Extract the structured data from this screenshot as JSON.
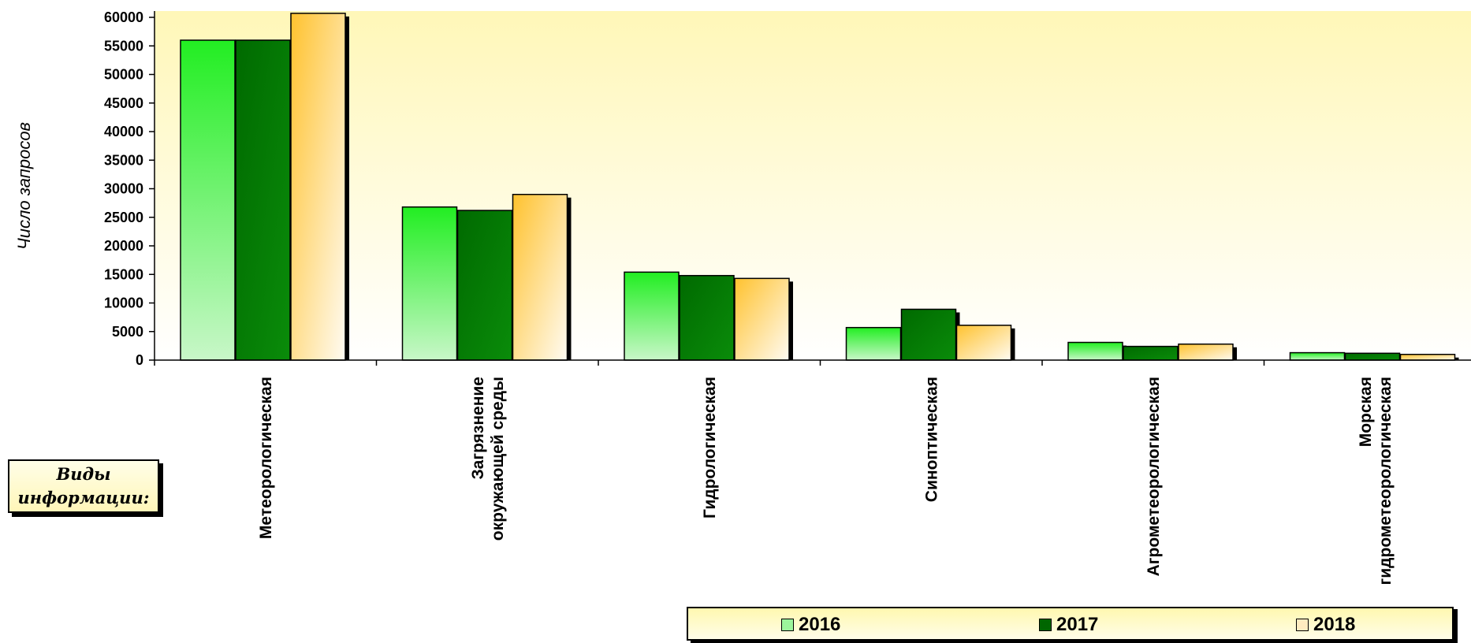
{
  "chart_data": {
    "type": "bar",
    "title": "",
    "xlabel": "Виды информации:",
    "ylabel": "Число запросов",
    "ylim": [
      0,
      60000
    ],
    "yticks": [
      "0",
      "5000",
      "10000",
      "15000",
      "20000",
      "25000",
      "30000",
      "35000",
      "40000",
      "45000",
      "50000",
      "55000",
      "60000"
    ],
    "categories": [
      [
        "Метеорологическая"
      ],
      [
        "Загрязнение",
        "окружающей среды"
      ],
      [
        "Гидрологическая"
      ],
      [
        "Синоптическая"
      ],
      [
        "Агрометеорологическая"
      ],
      [
        "Морская",
        "гидрометеорологическая"
      ]
    ],
    "series": [
      {
        "name": "2016",
        "values": [
          56000,
          26800,
          15400,
          5700,
          3100,
          1300
        ]
      },
      {
        "name": "2017",
        "values": [
          56000,
          26200,
          14800,
          8900,
          2400,
          1200
        ]
      },
      {
        "name": "2018",
        "values": [
          60700,
          29000,
          14300,
          6100,
          2800,
          1000
        ]
      }
    ],
    "legend_position": "bottom",
    "grid": false,
    "colors": {
      "2016_top": "#22ee22",
      "2016_bottom": "#c8f7c8",
      "2017_top": "#006a00",
      "2017_bottom": "#0a8c0a",
      "2018_top": "#ffc22e",
      "2018_bottom": "#fffbf2",
      "plot_bg_top": "#fff7b8",
      "plot_bg_bottom": "#ffffff",
      "legend_2016": "#9cf59c",
      "legend_2017": "#006600",
      "legend_2018": "#ffecc0"
    }
  }
}
